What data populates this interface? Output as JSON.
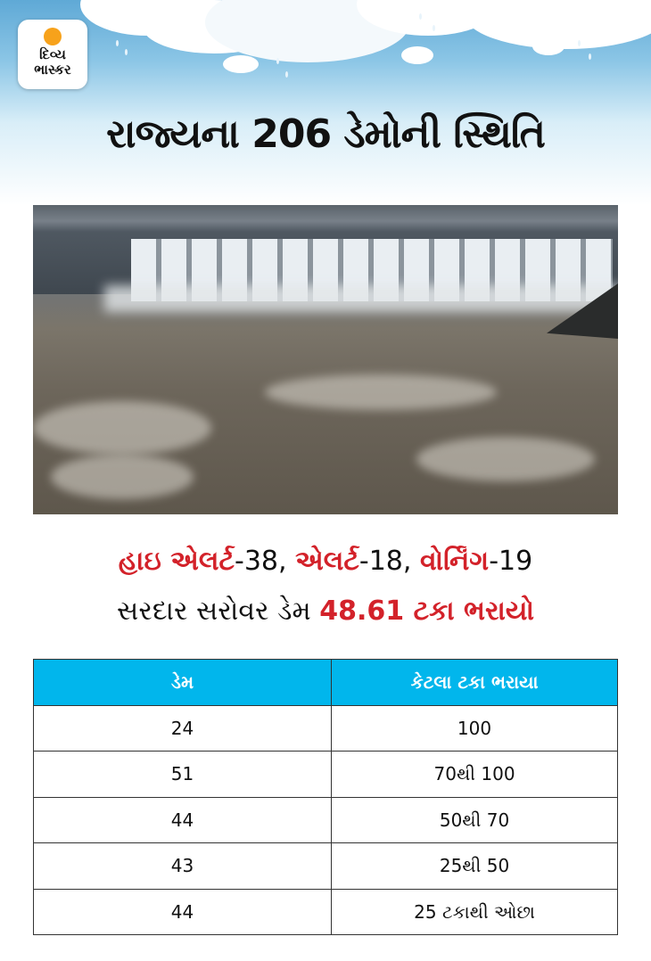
{
  "brand": {
    "logo_line1": "દિવ્ય",
    "logo_line2": "ભાસ્કર",
    "sun_color": "#f7a21b"
  },
  "headline": "રાજ્યના 206 ડેમોની સ્થિતિ",
  "alerts": {
    "high_alert_label": "હાઇ એલર્ટ",
    "high_alert_value": "-38,",
    "alert_label": "એલર્ટ",
    "alert_value": "-18,",
    "warning_label": "વોર્નિંગ",
    "warning_value": "-19"
  },
  "sardar": {
    "text": "સરદાર સરોવર ડેમ",
    "highlight": "48.61 ટકા ભરાયો"
  },
  "colors": {
    "accent_red": "#d3222a",
    "header_blue": "#01b6ec"
  },
  "table": {
    "headers": [
      "ડેમ",
      "કેટલા ટકા ભરાયા"
    ],
    "rows": [
      [
        "24",
        "100"
      ],
      [
        "51",
        "70થી 100"
      ],
      [
        "44",
        "50થી 70"
      ],
      [
        "43",
        "25થી 50"
      ],
      [
        "44",
        "25 ટકાથી ઓછા"
      ]
    ]
  }
}
